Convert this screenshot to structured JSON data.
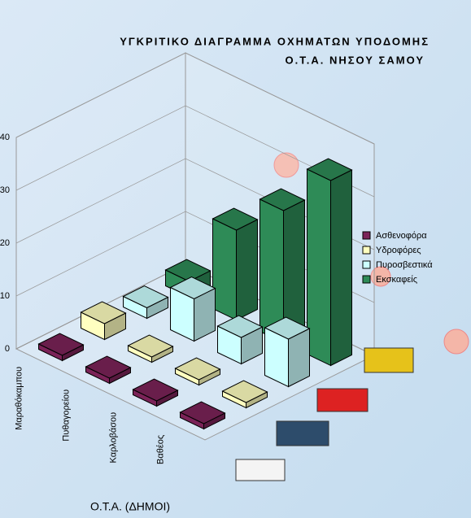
{
  "chart_data": {
    "type": "bar3d",
    "title": "ΥΓΚΡΙΤΙΚΟ ΔΙΑΓΡΑΜΜΑ ΟΧΗΜΑΤΩΝ ΥΠΟΔΟΜΗΣ",
    "subtitle": "Ο.Τ.Α. ΝΗΣΟΥ ΣΑΜΟΥ",
    "x_label": "Ο.Τ.Α. (ΔΗΜΟΙ)",
    "categories": [
      "Μαραθόκαμπου",
      "Πυθαγορείου",
      "Καρλοβάσου",
      "Βαθέος"
    ],
    "series": [
      {
        "name": "Ασθενοφόρα",
        "color": "#7b2358",
        "values": [
          1,
          1,
          1,
          1
        ]
      },
      {
        "name": "Υδροφόρες",
        "color": "#ffffc0",
        "values": [
          3,
          1,
          1,
          1
        ]
      },
      {
        "name": "Πυροσβεστικά",
        "color": "#ccffff",
        "values": [
          2,
          8,
          5,
          9
        ]
      },
      {
        "name": "Εκσκαφείς",
        "color": "#2e8b57",
        "values": [
          3,
          17,
          25,
          35
        ]
      }
    ],
    "ylim": [
      0,
      40
    ],
    "yticks": [
      0,
      10,
      20,
      30,
      40
    ],
    "grid": true
  }
}
